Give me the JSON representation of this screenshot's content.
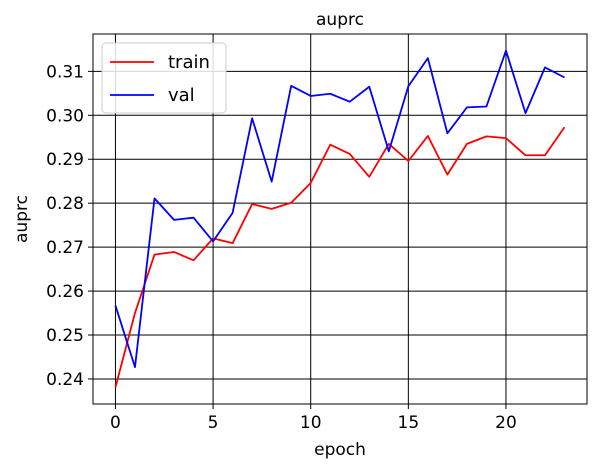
{
  "chart_data": {
    "type": "line",
    "title": "auprc",
    "xlabel": "epoch",
    "ylabel": "auprc",
    "xlim": [
      -1.15,
      24.15
    ],
    "ylim": [
      0.2343,
      0.3185
    ],
    "xticks": [
      0,
      5,
      10,
      15,
      20
    ],
    "yticks": [
      0.24,
      0.25,
      0.26,
      0.27,
      0.28,
      0.29,
      0.3,
      0.31
    ],
    "ytick_labels": [
      "0.24",
      "0.25",
      "0.26",
      "0.27",
      "0.28",
      "0.29",
      "0.30",
      "0.31"
    ],
    "grid": true,
    "legend_position": "top-left",
    "x": [
      0,
      1,
      2,
      3,
      4,
      5,
      6,
      7,
      8,
      9,
      10,
      11,
      12,
      13,
      14,
      15,
      16,
      17,
      18,
      19,
      20,
      21,
      22,
      23
    ],
    "series": [
      {
        "name": "train",
        "color": "#ff0000",
        "values": [
          0.2381,
          0.255,
          0.2683,
          0.2689,
          0.267,
          0.272,
          0.2709,
          0.2798,
          0.2787,
          0.2801,
          0.2846,
          0.2933,
          0.2912,
          0.286,
          0.2935,
          0.2896,
          0.2953,
          0.2865,
          0.2935,
          0.2952,
          0.2948,
          0.2909,
          0.2909,
          0.2973
        ]
      },
      {
        "name": "val",
        "color": "#0000ff",
        "values": [
          0.2567,
          0.2427,
          0.2811,
          0.2762,
          0.2767,
          0.2713,
          0.2778,
          0.2993,
          0.2849,
          0.3067,
          0.3044,
          0.3049,
          0.3031,
          0.3065,
          0.2918,
          0.3066,
          0.313,
          0.2959,
          0.3018,
          0.302,
          0.3147,
          0.3005,
          0.3109,
          0.3086
        ]
      }
    ]
  }
}
